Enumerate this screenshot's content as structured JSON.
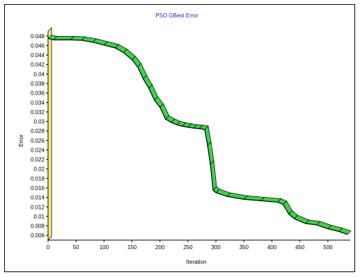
{
  "chart_data": {
    "type": "line",
    "title": "PSO GBest Error",
    "xlabel": "Iteration",
    "ylabel": "Error",
    "xlim": [
      0,
      540
    ],
    "ylim": [
      0.005,
      0.049
    ],
    "x_ticks": [
      "0",
      "50",
      "100",
      "150",
      "200",
      "250",
      "300",
      "350",
      "400",
      "450",
      "500"
    ],
    "y_ticks": [
      "0.048",
      "0.046",
      "0.044",
      "0.042",
      "0.04",
      "0.038",
      "0.036",
      "0.034",
      "0.032",
      "0.03",
      "0.028",
      "0.026",
      "0.024",
      "0.022",
      "0.02",
      "0.018",
      "0.016",
      "0.014",
      "0.012",
      "0.01",
      "0.008",
      "0.006"
    ],
    "grid": false,
    "colors": {
      "line_fill": "#3cd24a",
      "line_edge": "#000000",
      "wall": "#fff27a",
      "title": "#2020c0"
    },
    "series": [
      {
        "name": "",
        "x": [
          0,
          10,
          40,
          60,
          80,
          100,
          120,
          135,
          150,
          160,
          170,
          180,
          190,
          200,
          210,
          220,
          230,
          240,
          250,
          260,
          270,
          280,
          285,
          290,
          295,
          300,
          320,
          350,
          380,
          410,
          420,
          430,
          440,
          460,
          480,
          500,
          520,
          535
        ],
        "y": [
          0.0475,
          0.0472,
          0.0472,
          0.0471,
          0.0467,
          0.0461,
          0.0455,
          0.0445,
          0.043,
          0.0415,
          0.039,
          0.037,
          0.0345,
          0.033,
          0.0305,
          0.0298,
          0.0293,
          0.029,
          0.0288,
          0.0286,
          0.0285,
          0.0283,
          0.025,
          0.021,
          0.0155,
          0.015,
          0.0142,
          0.0136,
          0.0133,
          0.013,
          0.0125,
          0.0105,
          0.0095,
          0.0085,
          0.0082,
          0.0074,
          0.0068,
          0.0062
        ]
      }
    ]
  }
}
